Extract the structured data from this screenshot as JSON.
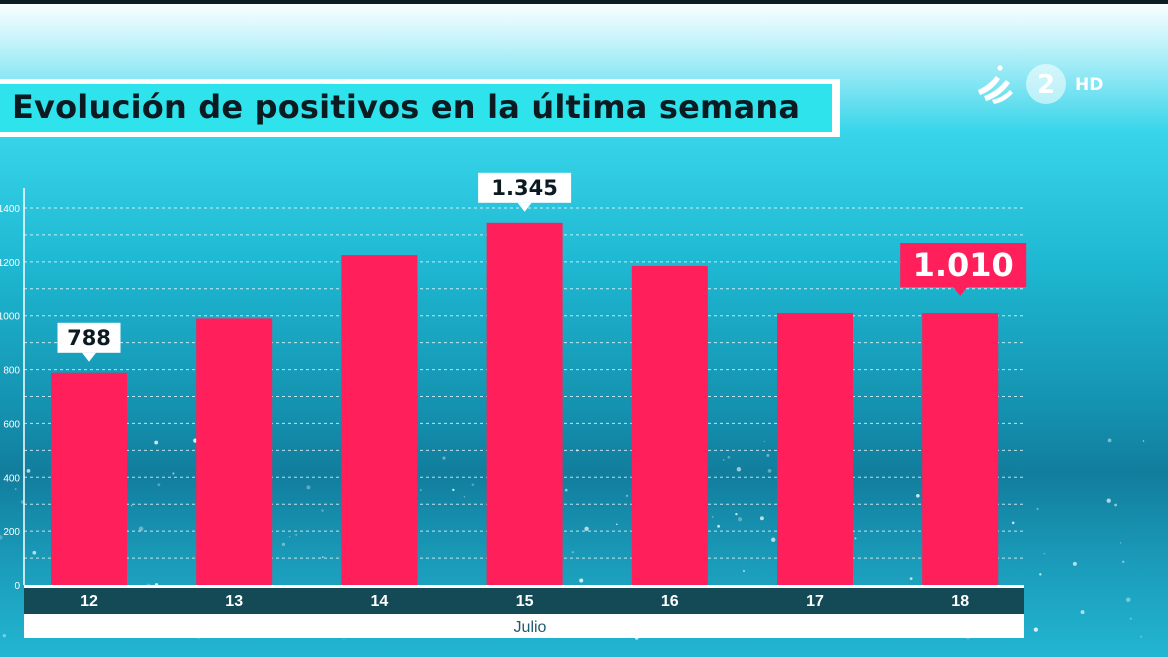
{
  "channel": {
    "number": "2",
    "hd_label": "HD"
  },
  "chart_data": {
    "type": "bar",
    "title": "Evolución de positivos en la última semana",
    "categories": [
      "12",
      "13",
      "14",
      "15",
      "16",
      "17",
      "18"
    ],
    "values": [
      788,
      990,
      1225,
      1345,
      1185,
      1010,
      1010
    ],
    "data_labels": [
      {
        "index": 0,
        "text": "788",
        "style": "white"
      },
      {
        "index": 3,
        "text": "1.345",
        "style": "white"
      },
      {
        "index": 6,
        "text": "1.010",
        "style": "highlight"
      }
    ],
    "xlabel": "Julio",
    "ylabel": "",
    "ylim": [
      0,
      1400
    ],
    "yticks": [
      0,
      200,
      400,
      600,
      800,
      1000,
      1200,
      1400
    ],
    "ytick_labels": [
      "0",
      "200",
      "400",
      "600",
      "800",
      "1000",
      "1200",
      "1400"
    ],
    "grid": true,
    "colors": {
      "bar": "#ff1f5a",
      "axis_band": "#134a55",
      "highlight_label": "#ff1f5a",
      "title_bg": "#2ee3ec"
    }
  }
}
